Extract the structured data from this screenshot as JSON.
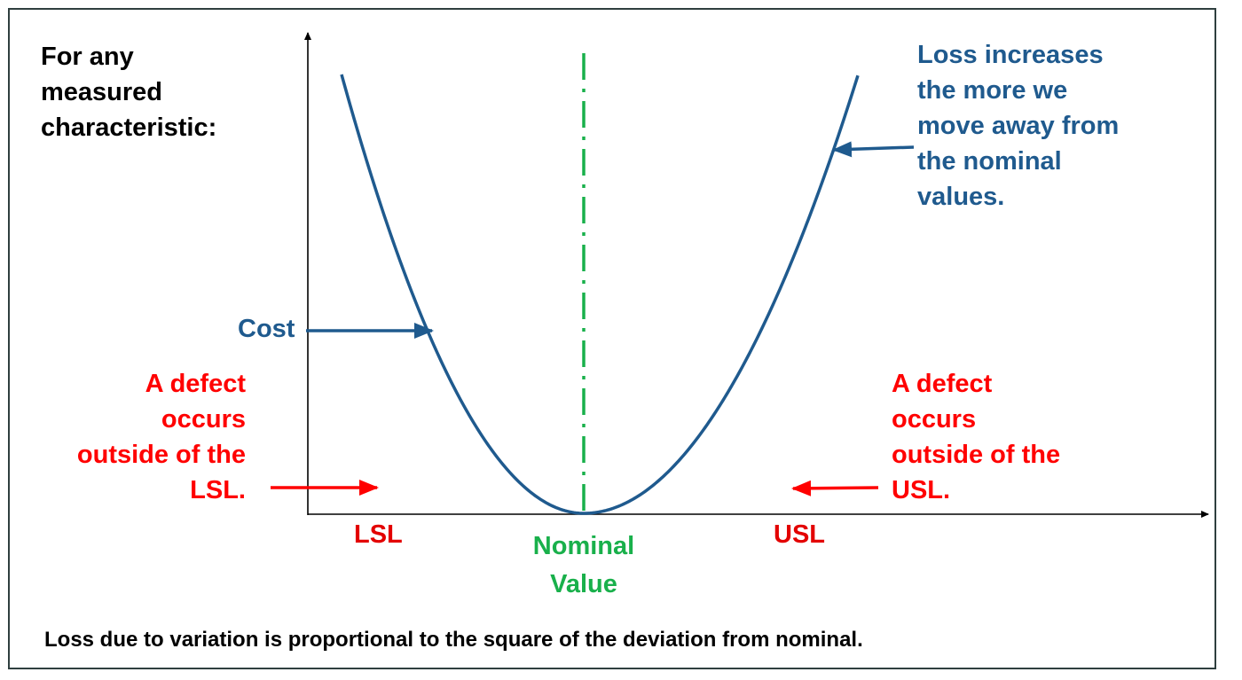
{
  "intro": [
    "For any",
    "measured",
    "characteristic:"
  ],
  "loss_note": [
    "Loss increases",
    "the more we",
    "move away from",
    "the nominal",
    "values."
  ],
  "cost_label": "Cost",
  "defect_left": [
    "A defect",
    "occurs",
    "outside of the",
    "LSL."
  ],
  "defect_right": [
    "A defect",
    "occurs",
    "outside of the",
    "USL."
  ],
  "lsl": "LSL",
  "usl": "USL",
  "nominal": [
    "Nominal",
    "Value"
  ],
  "footer": "Loss due to variation is proportional to the square of the deviation from nominal.",
  "colors": {
    "curve": "#1f5a8e",
    "spec_limit": "#ff0000",
    "nominal": "#19b04b",
    "axis": "#000000",
    "frame": "#2f3f3f"
  },
  "chart_data": {
    "type": "line",
    "description_curve": "quadratic loss function",
    "x_markers": [
      "LSL",
      "Nominal Value",
      "USL"
    ]
  }
}
